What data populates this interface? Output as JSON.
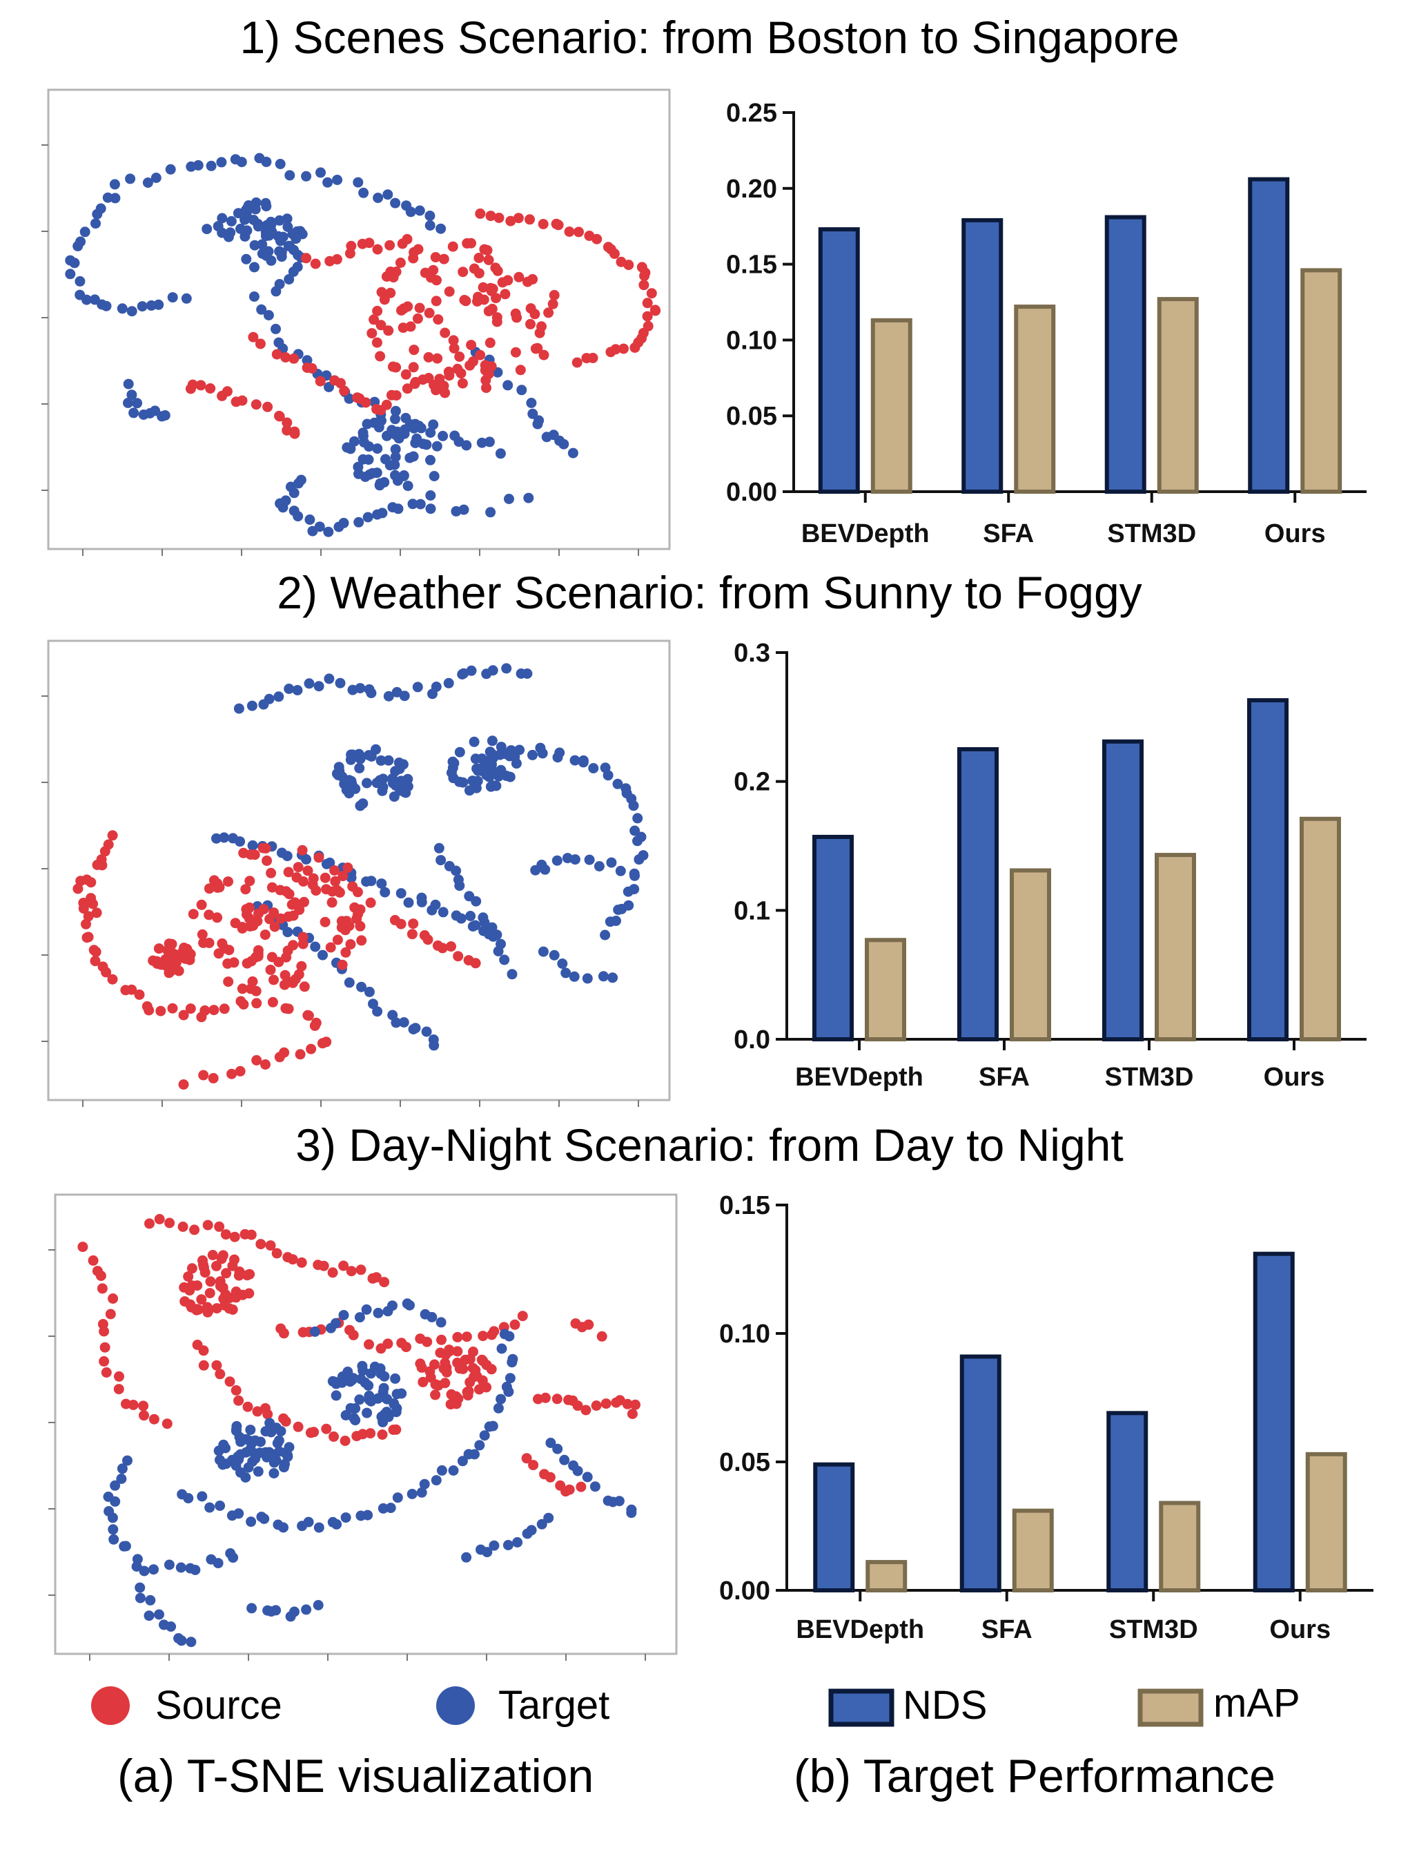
{
  "colors": {
    "source": "#e0383f",
    "target": "#3658aa",
    "nds_fill": "#3d64b3",
    "nds_stroke": "#0b1a3a",
    "map_fill": "#c8b089",
    "map_stroke": "#7a6c4d"
  },
  "scenarios": [
    {
      "title": "1) Scenes Scenario: from Boston to Singapore"
    },
    {
      "title": "2) Weather Scenario: from Sunny to Foggy"
    },
    {
      "title": "3) Day-Night Scenario: from Day to Night"
    }
  ],
  "chart_data": [
    {
      "type": "bar",
      "title": "1) Scenes Scenario: from Boston to Singapore",
      "categories": [
        "BEVDepth",
        "SFA",
        "STM3D",
        "Ours"
      ],
      "series": [
        {
          "name": "NDS",
          "values": [
            0.173,
            0.179,
            0.181,
            0.206
          ]
        },
        {
          "name": "mAP",
          "values": [
            0.113,
            0.122,
            0.127,
            0.146
          ]
        }
      ],
      "ylim": [
        0,
        0.25
      ],
      "yticks": [
        "0.00",
        "0.05",
        "0.10",
        "0.15",
        "0.20",
        "0.25"
      ]
    },
    {
      "type": "bar",
      "title": "2) Weather Scenario: from Sunny to Foggy",
      "categories": [
        "BEVDepth",
        "SFA",
        "STM3D",
        "Ours"
      ],
      "series": [
        {
          "name": "NDS",
          "values": [
            0.157,
            0.225,
            0.231,
            0.263
          ]
        },
        {
          "name": "mAP",
          "values": [
            0.077,
            0.131,
            0.143,
            0.171
          ]
        }
      ],
      "ylim": [
        0,
        0.3
      ],
      "yticks": [
        "0.0",
        "0.1",
        "0.2",
        "0.3"
      ]
    },
    {
      "type": "bar",
      "title": "3) Day-Night Scenario: from Day to Night",
      "categories": [
        "BEVDepth",
        "SFA",
        "STM3D",
        "Ours"
      ],
      "series": [
        {
          "name": "NDS",
          "values": [
            0.049,
            0.091,
            0.069,
            0.131
          ]
        },
        {
          "name": "mAP",
          "values": [
            0.011,
            0.031,
            0.034,
            0.053
          ]
        }
      ],
      "ylim": [
        0,
        0.15
      ],
      "yticks": [
        "0.00",
        "0.05",
        "0.10",
        "0.15"
      ]
    }
  ],
  "legend_tsne": {
    "source": "Source",
    "target": "Target"
  },
  "legend_bars": {
    "nds": "NDS",
    "map": "mAP"
  },
  "captions": {
    "left": "(a) T-SNE visualization",
    "right": "(b) Target Performance"
  }
}
